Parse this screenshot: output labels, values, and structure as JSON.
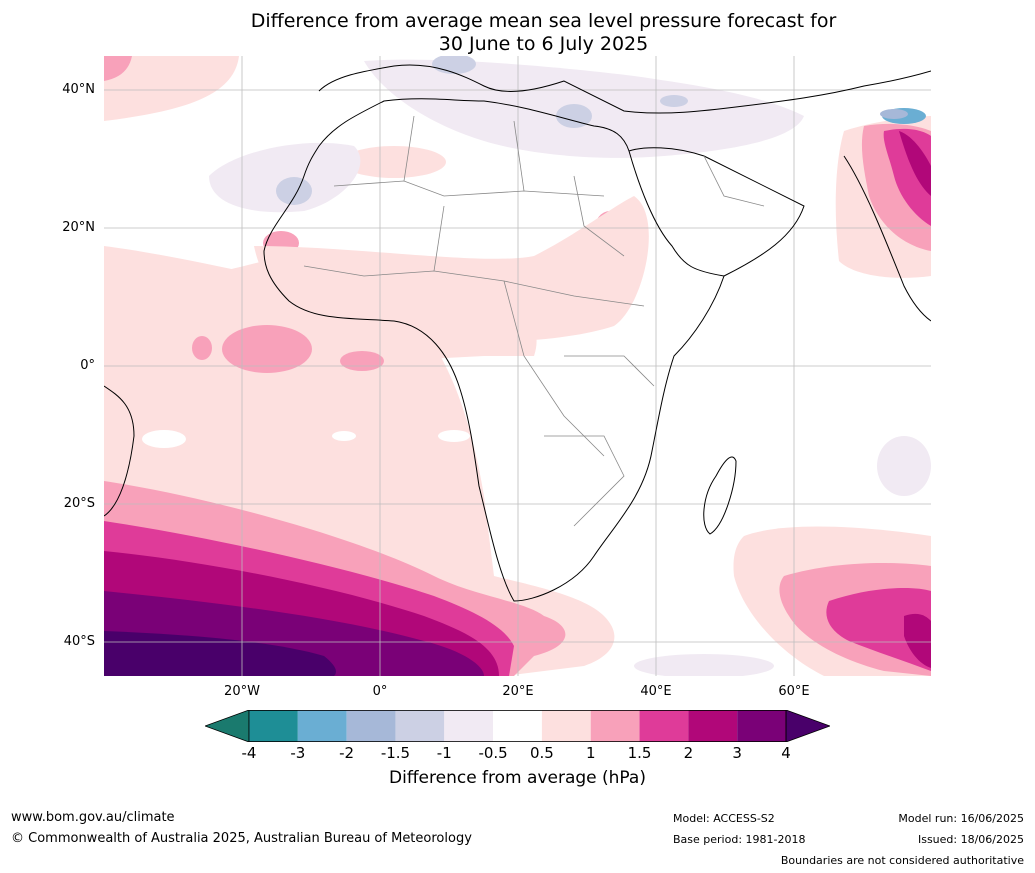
{
  "title": {
    "line1": "Difference from average mean sea level pressure forecast for",
    "line2": "30 June to 6 July 2025"
  },
  "map": {
    "lat_labels": [
      "40°N",
      "20°N",
      "0°",
      "20°S",
      "40°S"
    ],
    "lon_labels": [
      "20°W",
      "0°",
      "20°E",
      "40°E",
      "60°E"
    ],
    "region": "Africa and surrounding oceans"
  },
  "colorbar": {
    "title": "Difference from average (hPa)",
    "tick_labels": [
      "-4",
      "-3",
      "-2",
      "-1.5",
      "-1",
      "-0.5",
      "0.5",
      "1",
      "1.5",
      "2",
      "3",
      "4"
    ],
    "colors": [
      "#1a7a6e",
      "#1e8e96",
      "#6aaed3",
      "#a6b8d8",
      "#ccd0e4",
      "#f1eaf3",
      "#ffffff",
      "#fde0df",
      "#f8a1ba",
      "#df3b99",
      "#b10779",
      "#7a0177",
      "#49006a"
    ],
    "extend_low_color": "#1a7a6e",
    "extend_high_color": "#49006a"
  },
  "footer": {
    "website": "www.bom.gov.au/climate",
    "copyright": "© Commonwealth of Australia 2025, Australian Bureau of Meteorology",
    "model": "Model: ACCESS-S2",
    "base_period": "Base period: 1981-2018",
    "model_run": "Model run: 16/06/2025",
    "issued": "Issued: 18/06/2025",
    "disclaimer": "Boundaries are not considered authoritative"
  }
}
